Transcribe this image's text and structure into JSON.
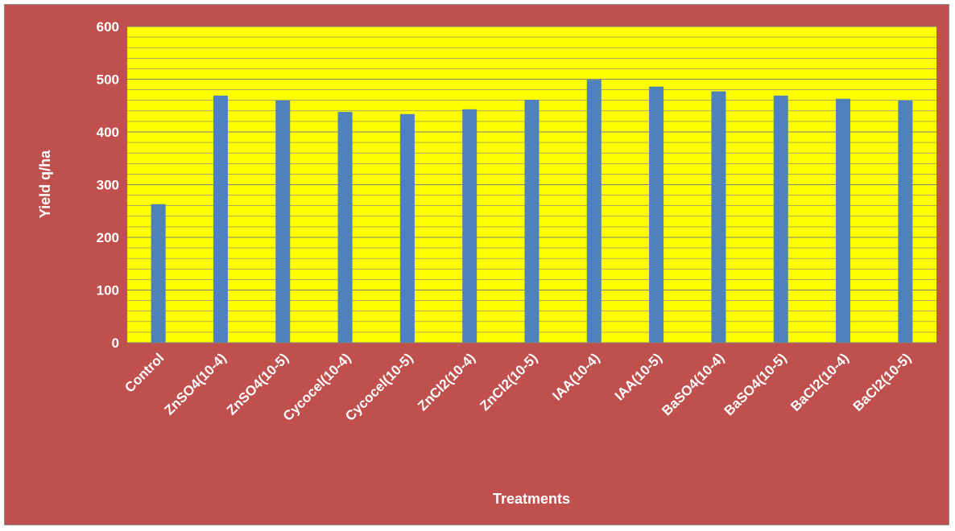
{
  "chart_data": {
    "type": "bar",
    "title": "",
    "xlabel": "Treatments",
    "ylabel": "Yield q/ha",
    "ylim": [
      0,
      600
    ],
    "yticks": [
      0,
      100,
      200,
      300,
      400,
      500,
      600
    ],
    "grid": true,
    "legend": "none",
    "colors": {
      "background": "#c0504d",
      "plot_area": "#ffff00",
      "bar": "#4f81bd",
      "gridline": "#7f7f7f",
      "text": "#ffffff"
    },
    "categories": [
      "Control",
      "ZnSO4(10-4)",
      "ZnSO4(10-5)",
      "Cycocel(10-4)",
      "Cycocel(10-5)",
      "ZnCl2(10-4)",
      "ZnCl2(10-5)",
      "IAA(10-4)",
      "IAA(10-5)",
      "BaSO4(10-4)",
      "BaSO4(10-5)",
      "BaCl2(10-4)",
      "BaCl2(10-5)"
    ],
    "values": [
      263,
      469,
      460,
      438,
      434,
      443,
      461,
      499,
      486,
      477,
      469,
      463,
      460
    ]
  }
}
